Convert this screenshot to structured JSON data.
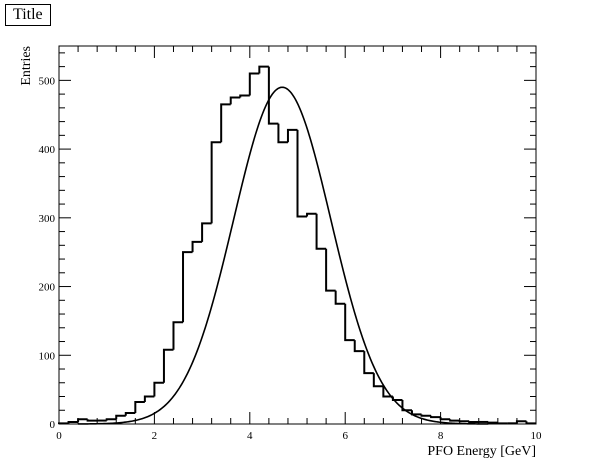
{
  "chart_data": {
    "type": "histogram",
    "title": "Title",
    "xlabel": "PFO Energy [GeV]",
    "ylabel": "Entries",
    "xlim": [
      0,
      10
    ],
    "ylim": [
      0,
      550
    ],
    "x_ticks": [
      0,
      2,
      4,
      6,
      8,
      10
    ],
    "y_ticks": [
      0,
      100,
      200,
      300,
      400,
      500
    ],
    "bin_width": 0.2,
    "bin_edges_start": 0,
    "counts": [
      1,
      3,
      7,
      5,
      5,
      7,
      12,
      16,
      32,
      40,
      60,
      108,
      148,
      250,
      265,
      292,
      410,
      465,
      475,
      478,
      510,
      520,
      437,
      410,
      428,
      302,
      306,
      255,
      194,
      175,
      122,
      106,
      74,
      55,
      40,
      35,
      20,
      14,
      12,
      10,
      7,
      5,
      4,
      3,
      3,
      2,
      1,
      1,
      4,
      1
    ],
    "fit": {
      "function": "gaussian",
      "constant": 490,
      "mean": 4.68,
      "sigma": 1.02,
      "range": [
        0.4,
        9.0
      ]
    }
  }
}
